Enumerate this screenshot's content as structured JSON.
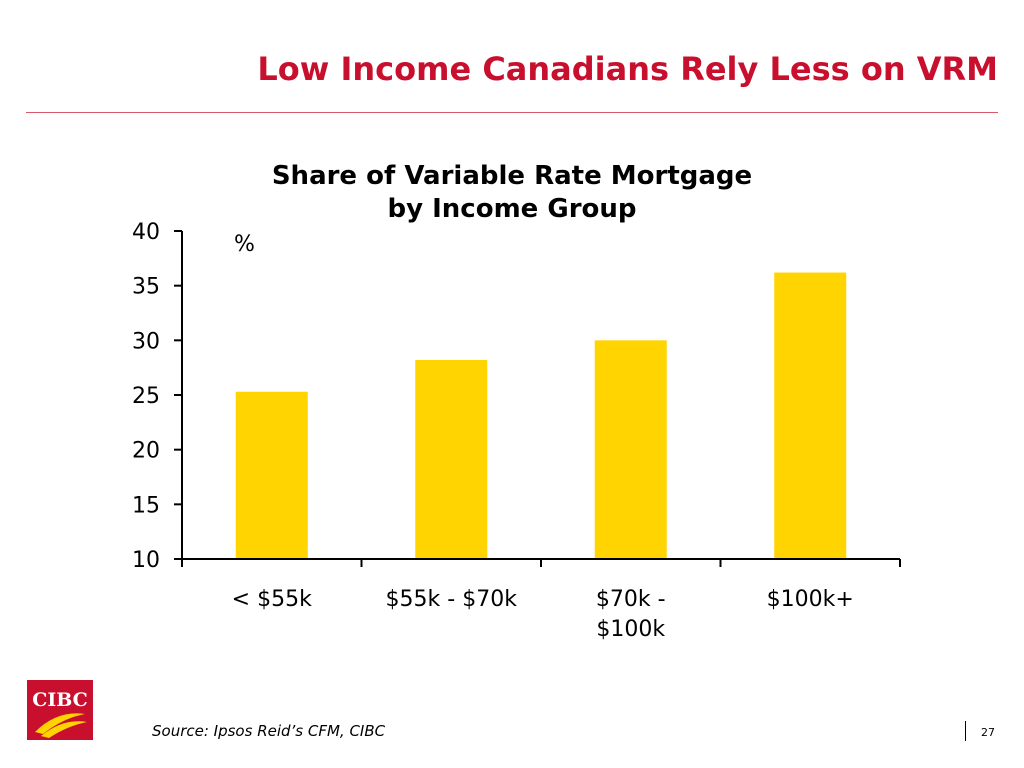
{
  "slide": {
    "title": "Low Income Canadians Rely Less on VRM",
    "source": "Source: Ipsos Reid’s CFM, CIBC",
    "page_number": "27",
    "logo_text": "CIBC",
    "colors": {
      "title": "#c8102e",
      "bar": "#ffd400",
      "logo": "#c8102e"
    }
  },
  "chart_data": {
    "type": "bar",
    "title": [
      "Share of Variable Rate Mortgage",
      "by Income Group"
    ],
    "ylabel": "%",
    "categories": [
      [
        "< $55k"
      ],
      [
        "$55k - $70k"
      ],
      [
        "$70k -",
        "$100k"
      ],
      [
        "$100k+"
      ]
    ],
    "values": [
      25.3,
      28.2,
      30.0,
      36.2
    ],
    "ylim": [
      10,
      40
    ],
    "yticks": [
      10,
      15,
      20,
      25,
      30,
      35,
      40
    ],
    "grid": false,
    "legend": "none"
  }
}
